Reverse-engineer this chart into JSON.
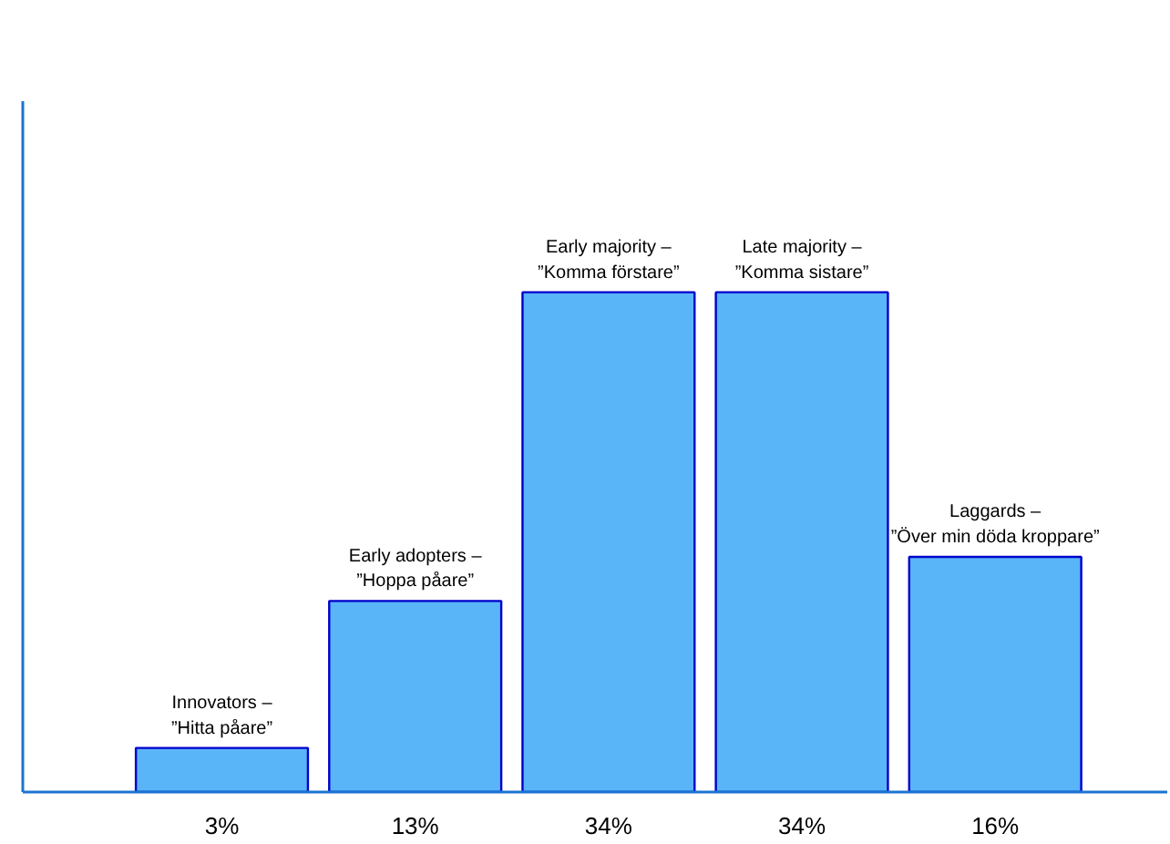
{
  "chart_data": {
    "type": "bar",
    "categories": [
      "Innovators –\n”Hitta påare”",
      "Early adopters –\n”Hoppa påare”",
      "Early majority –\n”Komma förstare”",
      "Late majority –\n”Komma sistare”",
      "Laggards –\n”Över min döda kroppare”"
    ],
    "values": [
      3,
      13,
      34,
      34,
      16
    ],
    "value_labels": [
      "3%",
      "13%",
      "34%",
      "34%",
      "16%"
    ],
    "color": "#5ab4f8",
    "ylim": [
      0,
      47
    ],
    "grid": false
  }
}
